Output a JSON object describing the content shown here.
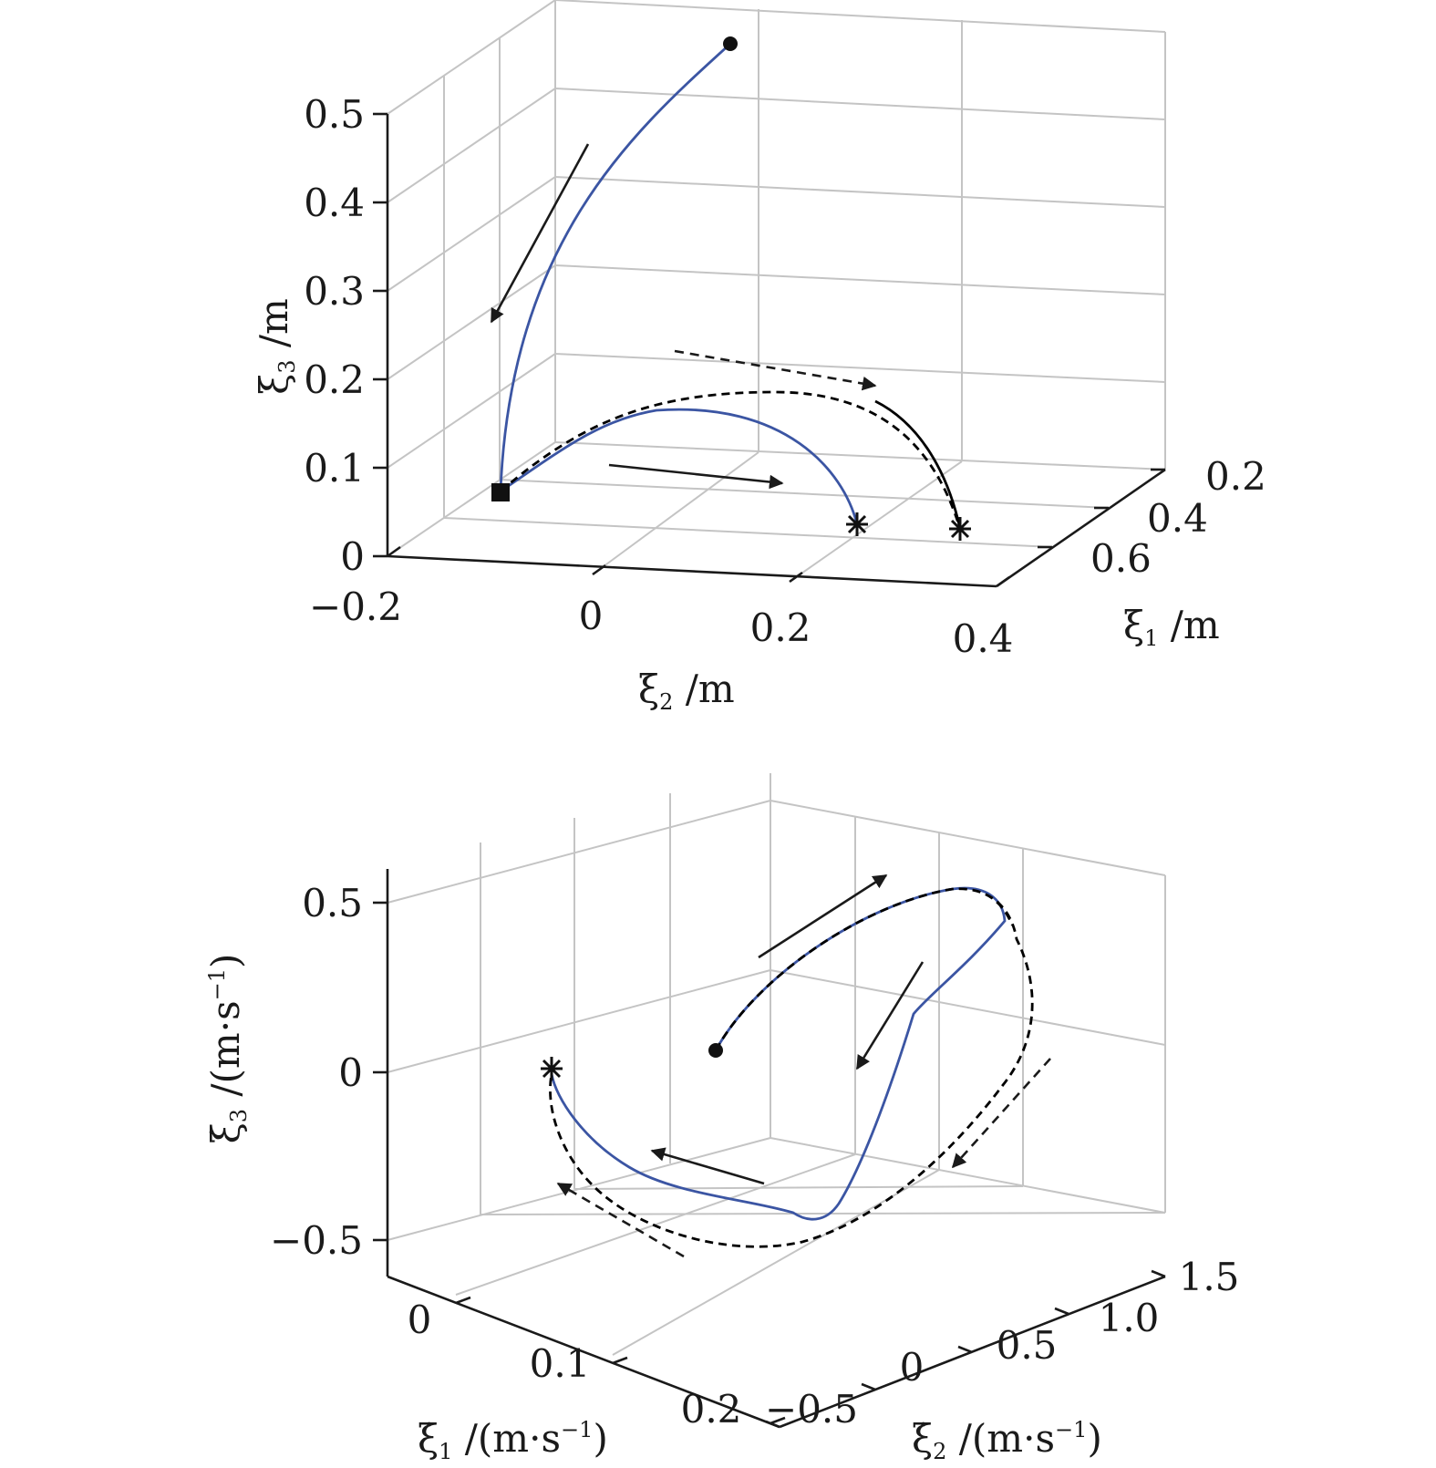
{
  "chart_data": [
    {
      "type": "line",
      "projection": "3d",
      "grid": true,
      "axes": {
        "x": {
          "ticks": [
            "0.2",
            "0.4",
            "0.6"
          ],
          "label_var": "ξ",
          "label_sub": "1",
          "label_unit": " /m"
        },
        "y": {
          "ticks": [
            "−0.2",
            "0",
            "0.2",
            "0.4"
          ],
          "label_var": "ξ",
          "label_sub": "2",
          "label_unit": " /m"
        },
        "z": {
          "ticks": [
            "0",
            "0.1",
            "0.2",
            "0.3",
            "0.4",
            "0.5"
          ],
          "label_var": "ξ",
          "label_sub": "3",
          "label_unit": " /m"
        }
      },
      "series": [
        {
          "style": "solid",
          "color": "#3b55a3",
          "role": "blue trajectory",
          "points": [
            [
              0.21,
              0.1,
              0.52
            ],
            [
              0.27,
              0.06,
              0.44
            ],
            [
              0.35,
              0.0,
              0.32
            ],
            [
              0.44,
              -0.04,
              0.2
            ],
            [
              0.52,
              -0.07,
              0.1
            ],
            [
              0.58,
              -0.08,
              0.05
            ]
          ]
        },
        {
          "style": "solid",
          "color": "#3b55a3",
          "role": "blue trajectory (lower)",
          "points": [
            [
              0.58,
              -0.08,
              0.05
            ],
            [
              0.53,
              0.0,
              0.11
            ],
            [
              0.47,
              0.1,
              0.15
            ],
            [
              0.45,
              0.18,
              0.16
            ],
            [
              0.47,
              0.24,
              0.13
            ],
            [
              0.52,
              0.27,
              0.07
            ],
            [
              0.57,
              0.28,
              0.03
            ]
          ]
        },
        {
          "style": "dashed",
          "color": "#000000",
          "role": "black reference",
          "points": [
            [
              0.58,
              -0.08,
              0.05
            ],
            [
              0.5,
              -0.02,
              0.13
            ],
            [
              0.4,
              0.09,
              0.19
            ],
            [
              0.33,
              0.18,
              0.21
            ],
            [
              0.3,
              0.25,
              0.19
            ],
            [
              0.32,
              0.31,
              0.14
            ],
            [
              0.38,
              0.36,
              0.08
            ],
            [
              0.45,
              0.38,
              0.03
            ]
          ]
        }
      ],
      "markers": [
        {
          "shape": "circle",
          "point": [
            0.21,
            0.1,
            0.52
          ]
        },
        {
          "shape": "square",
          "point": [
            0.58,
            -0.08,
            0.05
          ]
        },
        {
          "shape": "asterisk",
          "point": [
            0.57,
            0.28,
            0.03
          ]
        },
        {
          "shape": "asterisk",
          "point": [
            0.45,
            0.38,
            0.03
          ]
        }
      ]
    },
    {
      "type": "line",
      "projection": "3d",
      "grid": true,
      "axes": {
        "x": {
          "ticks": [
            "0",
            "0.1",
            "0.2"
          ],
          "label_var": "ξ̇",
          "label_sub": "1",
          "label_unit": " /(m·s",
          "label_sup": "−1",
          "label_close": ")"
        },
        "y": {
          "ticks": [
            "−0.5",
            "0",
            "0.5",
            "1.0",
            "1.5"
          ],
          "label_var": "ξ̇",
          "label_sub": "2",
          "label_unit": " /(m·s",
          "label_sup": "−1",
          "label_close": ")"
        },
        "z": {
          "ticks": [
            "−0.5",
            "0",
            "0.5"
          ],
          "label_var": "ξ̇",
          "label_sub": "3",
          "label_unit": " /(m·s",
          "label_sup": "−1",
          "label_close": ")"
        }
      },
      "series": [
        {
          "style": "solid",
          "color": "#3b55a3",
          "role": "blue trajectory",
          "points": [
            [
              0.06,
              0.2,
              0.1
            ],
            [
              0.05,
              0.6,
              0.35
            ],
            [
              0.04,
              1.0,
              0.5
            ],
            [
              0.03,
              1.3,
              0.52
            ],
            [
              0.03,
              1.35,
              0.45
            ],
            [
              0.04,
              1.1,
              0.2
            ],
            [
              0.1,
              0.95,
              -0.2
            ],
            [
              0.16,
              0.5,
              -0.32
            ],
            [
              0.12,
              0.2,
              -0.38
            ],
            [
              0.05,
              -0.1,
              -0.22
            ],
            [
              0.02,
              -0.2,
              0.02
            ]
          ]
        },
        {
          "style": "dashed",
          "color": "#000000",
          "role": "black reference",
          "points": [
            [
              0.06,
              0.2,
              0.1
            ],
            [
              0.05,
              0.6,
              0.35
            ],
            [
              0.04,
              1.0,
              0.5
            ],
            [
              0.03,
              1.3,
              0.52
            ],
            [
              0.03,
              1.4,
              0.4
            ],
            [
              0.06,
              1.3,
              0.0
            ],
            [
              0.12,
              1.0,
              -0.35
            ],
            [
              0.18,
              0.5,
              -0.48
            ],
            [
              0.14,
              0.1,
              -0.45
            ],
            [
              0.06,
              -0.15,
              -0.25
            ],
            [
              0.02,
              -0.2,
              0.02
            ]
          ]
        }
      ],
      "markers": [
        {
          "shape": "circle",
          "point": [
            0.06,
            0.2,
            0.1
          ]
        },
        {
          "shape": "asterisk",
          "point": [
            0.02,
            -0.2,
            0.02
          ]
        }
      ]
    }
  ]
}
